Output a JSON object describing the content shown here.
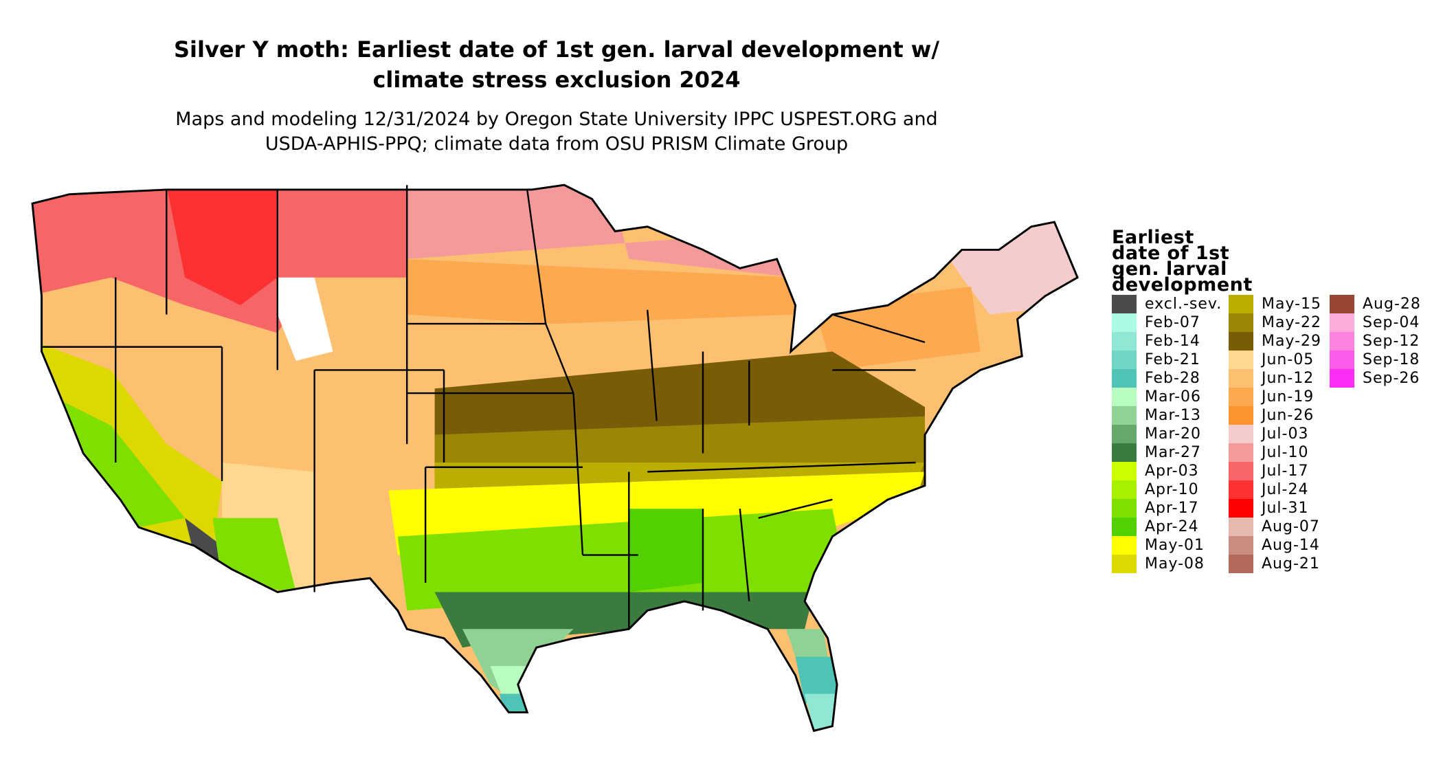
{
  "title": {
    "lines": [
      "Silver Y moth: Earliest date of 1st gen. larval development w/",
      "climate stress exclusion 2024"
    ]
  },
  "subtitle": {
    "lines": [
      "Maps and modeling 12/31/2024 by Oregon State University IPPC USPEST.ORG and",
      "USDA-APHIS-PPQ; climate data from OSU PRISM Climate Group"
    ]
  },
  "legend": {
    "title_lines": [
      "Earliest",
      "date of 1st",
      "gen. larval",
      "development"
    ],
    "items": [
      {
        "label": "excl.-sev.",
        "color": "#4a4a4a"
      },
      {
        "label": "Feb-07",
        "color": "#aaf9e2"
      },
      {
        "label": "Feb-14",
        "color": "#90e8d4"
      },
      {
        "label": "Feb-21",
        "color": "#72d6c5"
      },
      {
        "label": "Feb-28",
        "color": "#4fc3b6"
      },
      {
        "label": "Mar-06",
        "color": "#b8fcc0"
      },
      {
        "label": "Mar-13",
        "color": "#8fd294"
      },
      {
        "label": "Mar-20",
        "color": "#66a76c"
      },
      {
        "label": "Mar-27",
        "color": "#3b7b3f"
      },
      {
        "label": "Apr-03",
        "color": "#ccff00"
      },
      {
        "label": "Apr-10",
        "color": "#a8f000"
      },
      {
        "label": "Apr-17",
        "color": "#7fe000"
      },
      {
        "label": "Apr-24",
        "color": "#52d000"
      },
      {
        "label": "May-01",
        "color": "#ffff00"
      },
      {
        "label": "May-08",
        "color": "#dcd800"
      },
      {
        "label": "May-15",
        "color": "#bcae00"
      },
      {
        "label": "May-22",
        "color": "#9c8608"
      },
      {
        "label": "May-29",
        "color": "#785c08"
      },
      {
        "label": "Jun-05",
        "color": "#fdd88e"
      },
      {
        "label": "Jun-12",
        "color": "#fdc070"
      },
      {
        "label": "Jun-19",
        "color": "#fca950"
      },
      {
        "label": "Jun-26",
        "color": "#fc9432"
      },
      {
        "label": "Jul-03",
        "color": "#f4cccc"
      },
      {
        "label": "Jul-10",
        "color": "#f49a9a"
      },
      {
        "label": "Jul-17",
        "color": "#f66666"
      },
      {
        "label": "Jul-24",
        "color": "#fc3232"
      },
      {
        "label": "Jul-31",
        "color": "#ff0000"
      },
      {
        "label": "Aug-07",
        "color": "#e6b8ae"
      },
      {
        "label": "Aug-14",
        "color": "#ca8c80"
      },
      {
        "label": "Aug-21",
        "color": "#b46a5a"
      },
      {
        "label": "Aug-28",
        "color": "#9a4634"
      },
      {
        "label": "Sep-04",
        "color": "#fcacd8"
      },
      {
        "label": "Sep-12",
        "color": "#fc84e0"
      },
      {
        "label": "Sep-18",
        "color": "#fc5ae8"
      },
      {
        "label": "Sep-26",
        "color": "#fc2cf4"
      }
    ]
  }
}
